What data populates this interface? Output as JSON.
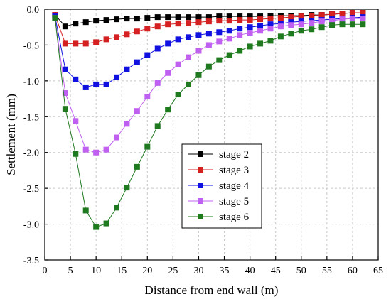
{
  "chart_data": {
    "type": "line",
    "xlabel": "Distance from end wall (m)",
    "ylabel": "Settlement (mm)",
    "xlim": [
      0,
      65
    ],
    "ylim": [
      -3.5,
      0.0
    ],
    "xticks": [
      0,
      5,
      10,
      15,
      20,
      25,
      30,
      35,
      40,
      45,
      50,
      55,
      60,
      65
    ],
    "yticks": [
      0.0,
      -0.5,
      -1.0,
      -1.5,
      -2.0,
      -2.5,
      -3.0,
      -3.5
    ],
    "xtick_labels": [
      "0",
      "5",
      "10",
      "15",
      "20",
      "25",
      "30",
      "35",
      "40",
      "45",
      "50",
      "55",
      "60",
      "65"
    ],
    "ytick_labels": [
      "0.0",
      "-0.5",
      "-1.0",
      "-1.5",
      "-2.0",
      "-2.5",
      "-3.0",
      "-3.5"
    ],
    "grid": true,
    "legend_position": "center-right",
    "x": [
      2,
      4,
      6,
      8,
      10,
      12,
      14,
      16,
      18,
      20,
      22,
      24,
      26,
      28,
      30,
      32,
      34,
      36,
      38,
      40,
      42,
      44,
      46,
      48,
      50,
      52,
      54,
      56,
      58,
      60,
      62
    ],
    "series": [
      {
        "name": "stage 2",
        "color": "#000000",
        "values": [
          -0.08,
          -0.24,
          -0.2,
          -0.18,
          -0.16,
          -0.15,
          -0.14,
          -0.13,
          -0.13,
          -0.12,
          -0.11,
          -0.11,
          -0.11,
          -0.11,
          -0.11,
          -0.11,
          -0.1,
          -0.1,
          -0.1,
          -0.1,
          -0.1,
          -0.09,
          -0.09,
          -0.09,
          -0.09,
          -0.08,
          -0.08,
          -0.07,
          -0.06,
          -0.05,
          -0.05
        ]
      },
      {
        "name": "stage 3",
        "color": "#d42020",
        "values": [
          -0.08,
          -0.48,
          -0.48,
          -0.48,
          -0.46,
          -0.42,
          -0.39,
          -0.35,
          -0.31,
          -0.27,
          -0.24,
          -0.21,
          -0.2,
          -0.19,
          -0.18,
          -0.17,
          -0.16,
          -0.16,
          -0.15,
          -0.15,
          -0.14,
          -0.13,
          -0.12,
          -0.11,
          -0.1,
          -0.09,
          -0.08,
          -0.07,
          -0.06,
          -0.05,
          -0.05
        ]
      },
      {
        "name": "stage 4",
        "color": "#1010e0",
        "values": [
          -0.1,
          -0.84,
          -0.98,
          -1.09,
          -1.05,
          -1.05,
          -0.95,
          -0.84,
          -0.74,
          -0.64,
          -0.55,
          -0.48,
          -0.42,
          -0.39,
          -0.36,
          -0.34,
          -0.32,
          -0.3,
          -0.27,
          -0.25,
          -0.23,
          -0.21,
          -0.2,
          -0.18,
          -0.17,
          -0.16,
          -0.15,
          -0.14,
          -0.13,
          -0.12,
          -0.11
        ]
      },
      {
        "name": "stage 5",
        "color": "#c060f0",
        "values": [
          -0.12,
          -1.17,
          -1.56,
          -1.96,
          -2.0,
          -1.96,
          -1.79,
          -1.6,
          -1.42,
          -1.22,
          -1.03,
          -0.89,
          -0.77,
          -0.67,
          -0.58,
          -0.5,
          -0.45,
          -0.41,
          -0.36,
          -0.33,
          -0.3,
          -0.27,
          -0.24,
          -0.22,
          -0.21,
          -0.19,
          -0.17,
          -0.16,
          -0.14,
          -0.13,
          -0.13
        ]
      },
      {
        "name": "stage 6",
        "color": "#1f7a1f",
        "values": [
          -0.12,
          -1.39,
          -2.02,
          -2.81,
          -3.04,
          -2.99,
          -2.77,
          -2.49,
          -2.2,
          -1.92,
          -1.63,
          -1.4,
          -1.19,
          -1.05,
          -0.92,
          -0.8,
          -0.71,
          -0.64,
          -0.58,
          -0.52,
          -0.48,
          -0.44,
          -0.38,
          -0.34,
          -0.3,
          -0.28,
          -0.25,
          -0.22,
          -0.21,
          -0.21,
          -0.21
        ]
      }
    ]
  }
}
